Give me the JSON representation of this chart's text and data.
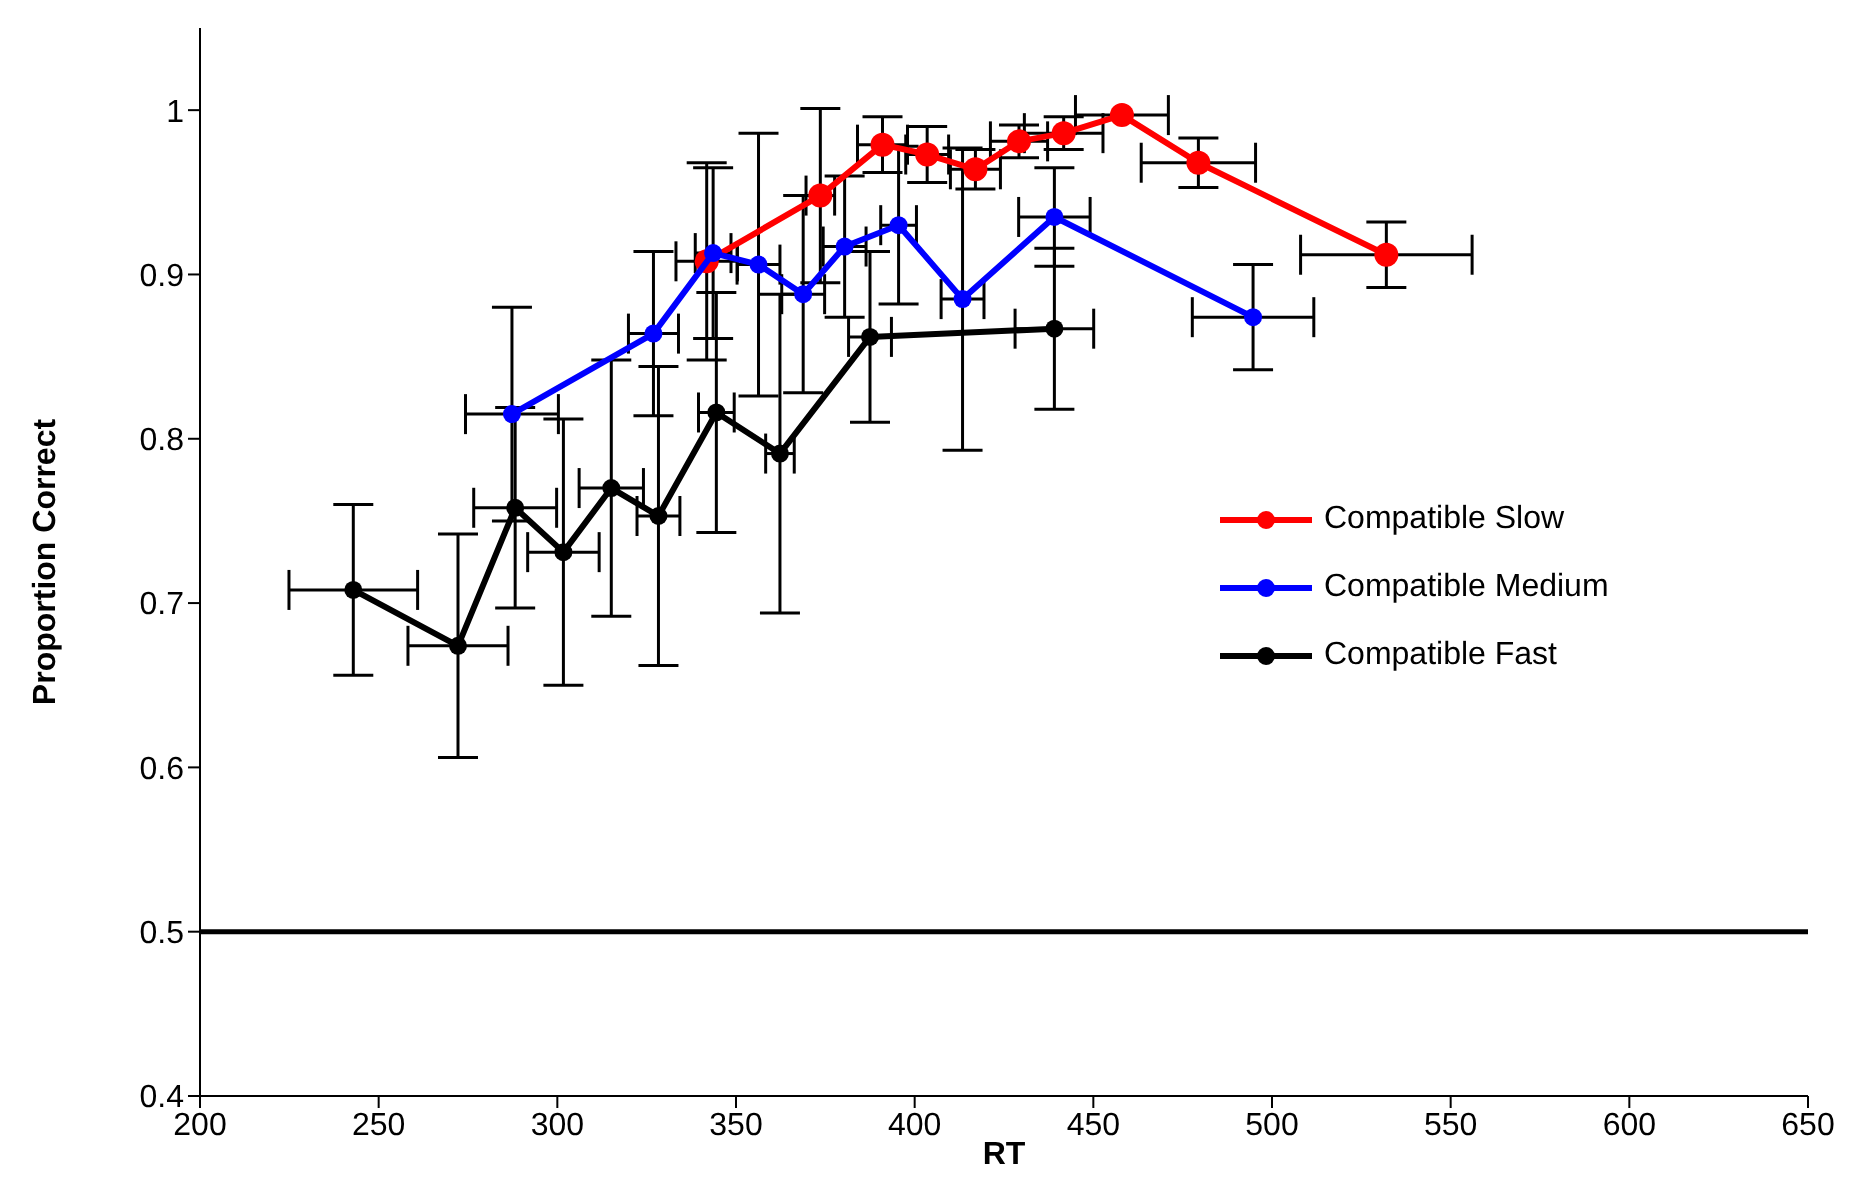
{
  "chart_data": {
    "type": "line",
    "xlabel": "RT",
    "ylabel": "Proportion Correct",
    "xlim": [
      200,
      650
    ],
    "xticks": [
      200,
      250,
      300,
      350,
      400,
      450,
      500,
      550,
      600,
      650
    ],
    "ylim": [
      0.4,
      1.05
    ],
    "yticks": [
      0.4,
      0.5,
      0.6,
      0.7,
      0.8,
      0.9,
      1
    ],
    "grid": false,
    "legend": "right",
    "marker": "circle",
    "line_style": "solid",
    "series": [
      {
        "name": "Compatible Slow",
        "color": "#ff0000",
        "x": [
          341.8,
          373.6,
          391,
          403.5,
          417,
          429.2,
          441.7,
          458,
          479.4,
          532
        ],
        "values": [
          0.908,
          0.948,
          0.979,
          0.973,
          0.964,
          0.981,
          0.986,
          0.997,
          0.968,
          0.912
        ],
        "errors": [
          0.06,
          0.053,
          0.017,
          0.017,
          0.012,
          0.01,
          0.01,
          null,
          0.015,
          0.02
        ],
        "xerrors": [
          8.6,
          4,
          7,
          6,
          7,
          8,
          11,
          13,
          16,
          24
        ]
      },
      {
        "name": "Compatible Medium",
        "color": "#0000ff",
        "x": [
          287.3,
          326.9,
          343.6,
          356.3,
          368.8,
          380.4,
          395.5,
          413.4,
          439.1,
          494.7
        ],
        "values": [
          0.815,
          0.864,
          0.913,
          0.906,
          0.888,
          0.917,
          0.93,
          0.885,
          0.935,
          0.874
        ],
        "errors": [
          0.065,
          0.05,
          0.052,
          0.08,
          0.06,
          0.043,
          0.048,
          0.092,
          0.03,
          0.032
        ],
        "xerrors": [
          13,
          7,
          5,
          6,
          6,
          6,
          5,
          6,
          10,
          17
        ]
      },
      {
        "name": "Compatible Fast",
        "color": "#000000",
        "x": [
          242.9,
          272.2,
          288.2,
          301.7,
          315.1,
          328.3,
          344.5,
          362.3,
          387.5,
          439.1
        ],
        "values": [
          0.708,
          0.674,
          0.758,
          0.731,
          0.77,
          0.753,
          0.816,
          0.791,
          0.862,
          0.867
        ],
        "errors": [
          0.052,
          0.068,
          0.061,
          0.081,
          0.078,
          0.091,
          0.073,
          0.097,
          0.052,
          0.049
        ],
        "xerrors": [
          18,
          14,
          11.6,
          10,
          9,
          6,
          5,
          4,
          6,
          11
        ]
      }
    ],
    "ref_lines": [
      {
        "axis": "y",
        "value": 0.5,
        "color": "#000000",
        "line_style": "solid"
      }
    ]
  }
}
